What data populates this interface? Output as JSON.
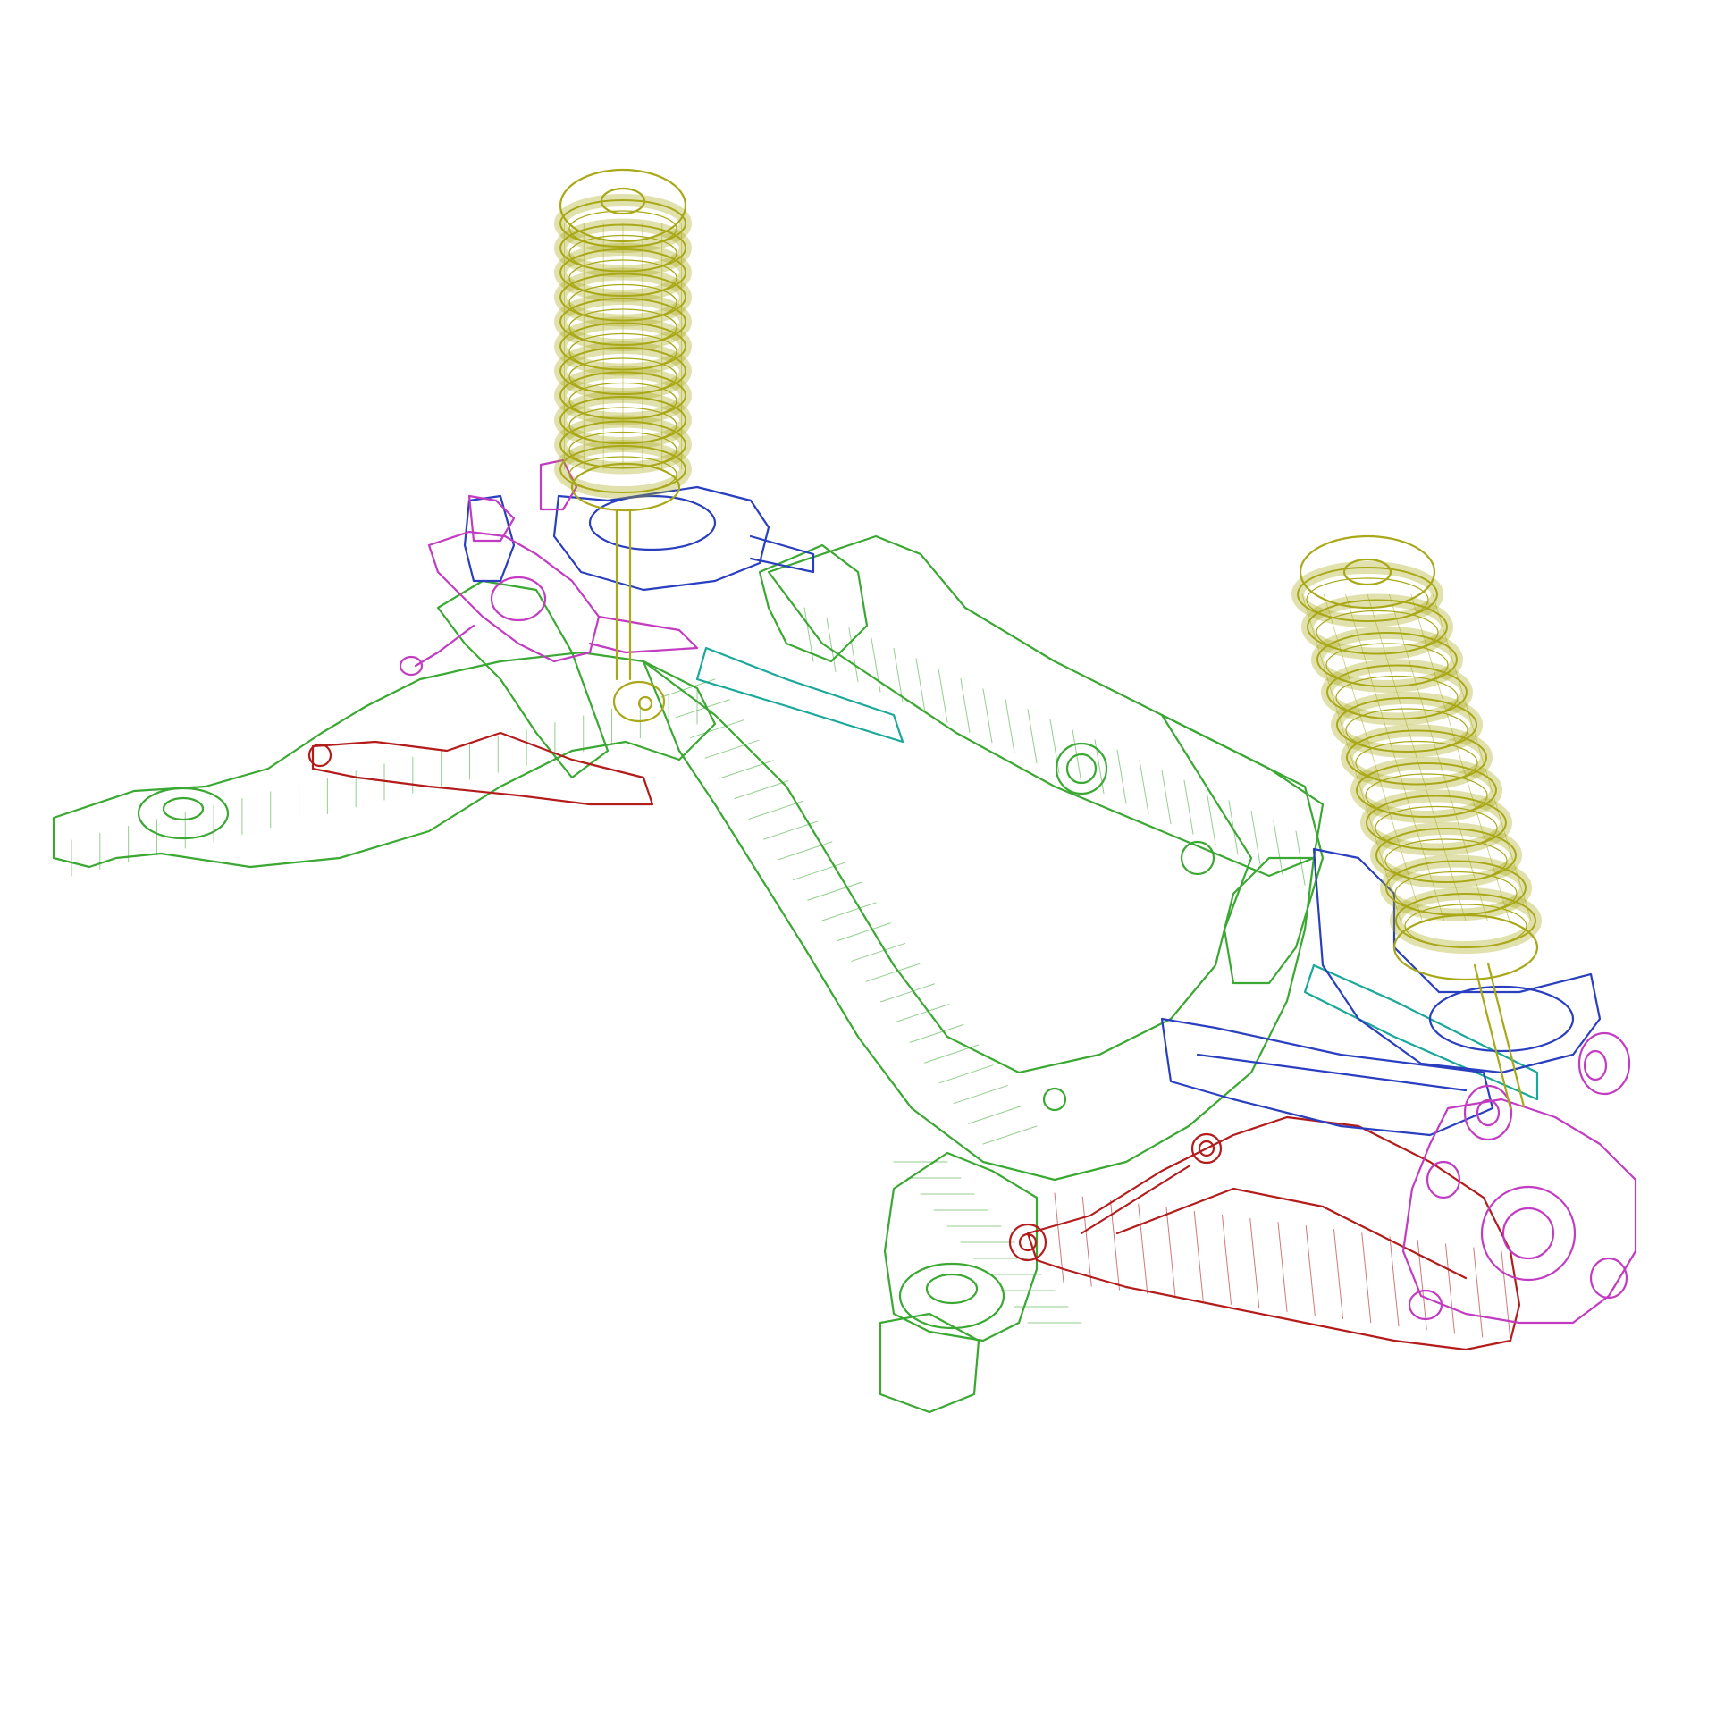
{
  "scene": {
    "background": "#ffffff",
    "render_style": "wireframe"
  },
  "colors": {
    "subframe": "#3aa832",
    "spring": "#a8a818",
    "upper_arm": "#2a3fbf",
    "knuckle": "#c23cc2",
    "lower_arm": "#b41c1c",
    "toe_link": "#1aa89a"
  },
  "parts": [
    {
      "name": "rear-subframe",
      "color_key": "subframe"
    },
    {
      "name": "left-coil-spring",
      "color_key": "spring"
    },
    {
      "name": "right-coil-spring",
      "color_key": "spring"
    },
    {
      "name": "left-upper-control-arm",
      "color_key": "upper_arm"
    },
    {
      "name": "right-upper-control-arm",
      "color_key": "upper_arm"
    },
    {
      "name": "left-knuckle",
      "color_key": "knuckle"
    },
    {
      "name": "right-knuckle",
      "color_key": "knuckle"
    },
    {
      "name": "left-lower-control-arm",
      "color_key": "lower_arm"
    },
    {
      "name": "right-lower-control-arm",
      "color_key": "lower_arm"
    },
    {
      "name": "left-toe-link",
      "color_key": "toe_link"
    },
    {
      "name": "right-toe-link",
      "color_key": "toe_link"
    }
  ]
}
